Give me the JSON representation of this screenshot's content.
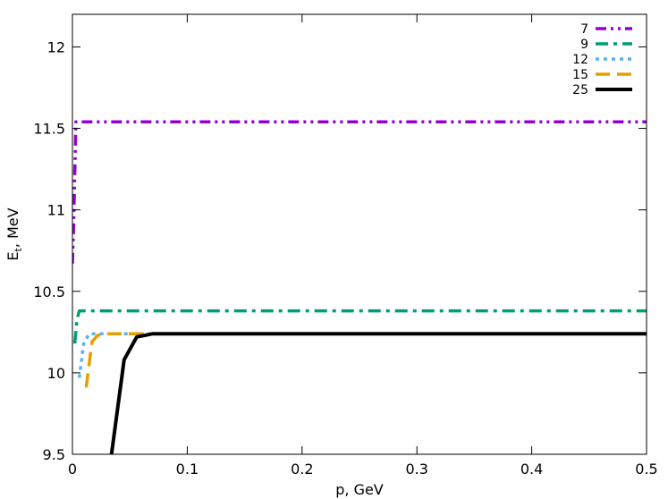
{
  "chart_data": {
    "type": "line",
    "title": "",
    "xlabel": "p, GeV",
    "ylabel_main": "E",
    "ylabel_sub": "t",
    "ylabel_rest": ", MeV",
    "xlim": [
      0,
      0.5
    ],
    "ylim": [
      9.5,
      12.2
    ],
    "xticks": [
      0,
      0.1,
      0.2,
      0.3,
      0.4,
      0.5
    ],
    "xtick_labels": [
      "0",
      "0.1",
      "0.2",
      "0.3",
      "0.4",
      "0.5"
    ],
    "yticks": [
      9.5,
      10,
      10.5,
      11,
      11.5,
      12
    ],
    "ytick_labels": [
      "9.5",
      "10",
      "10.5",
      "11",
      "11.5",
      "12"
    ],
    "grid": false,
    "legend_position": "top-right",
    "series": [
      {
        "name": "7",
        "color": "#9400d3",
        "dash": "dashdotdot",
        "x": [
          0,
          0.001,
          0.003,
          0.5
        ],
        "y": [
          10.67,
          10.9,
          11.54,
          11.54
        ]
      },
      {
        "name": "9",
        "color": "#009e73",
        "dash": "dashdot",
        "x": [
          0.002,
          0.004,
          0.006,
          0.5
        ],
        "y": [
          10.18,
          10.33,
          10.38,
          10.38
        ]
      },
      {
        "name": "12",
        "color": "#56b4e9",
        "dash": "dot",
        "x": [
          0.006,
          0.01,
          0.015,
          0.5
        ],
        "y": [
          9.97,
          10.19,
          10.24,
          10.24
        ]
      },
      {
        "name": "15",
        "color": "#e69f00",
        "dash": "dash",
        "x": [
          0.012,
          0.017,
          0.022,
          0.03,
          0.5
        ],
        "y": [
          9.91,
          10.19,
          10.23,
          10.24,
          10.24
        ]
      },
      {
        "name": "25",
        "color": "#000000",
        "dash": "solid",
        "x": [
          0.034,
          0.045,
          0.056,
          0.07,
          0.08,
          0.5
        ],
        "y": [
          9.5,
          10.08,
          10.22,
          10.24,
          10.24,
          10.24
        ]
      }
    ]
  }
}
